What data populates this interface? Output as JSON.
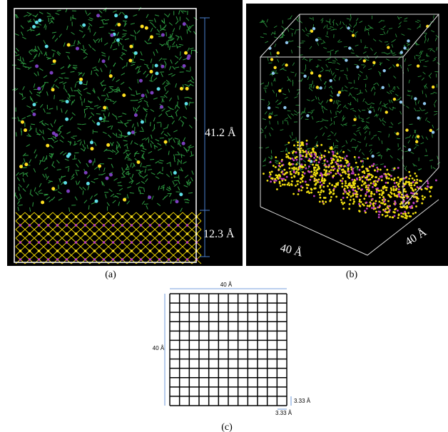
{
  "panels": [
    {
      "label": "(a)",
      "annotations": [
        "41.2 Å",
        "12.3 Å"
      ]
    },
    {
      "label": "(b)",
      "annotations": [
        "40 Å",
        "40 Å"
      ]
    },
    {
      "label": "(c)",
      "annotations": [
        "40 Å",
        "40 Å",
        "3.33 Å",
        "3.33 Å"
      ]
    }
  ]
}
